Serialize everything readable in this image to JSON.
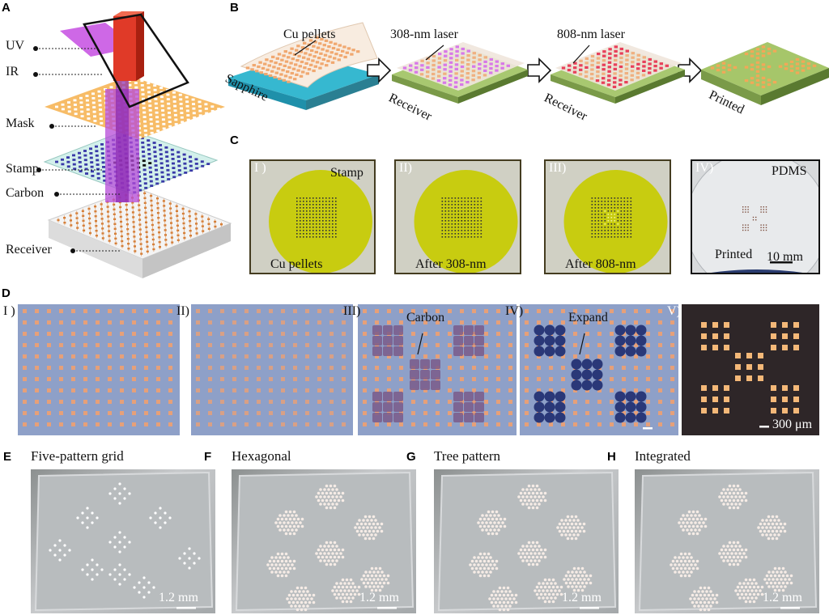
{
  "panels": {
    "A": {
      "letter": "A",
      "labels": {
        "uv": "UV",
        "ir": "IR",
        "mask": "Mask",
        "stamp": "Stamp",
        "carbon": "Carbon",
        "receiver": "Receiver"
      }
    },
    "B": {
      "letter": "B",
      "labels": {
        "cu": "Cu pellets",
        "sapphire": "Sapphire",
        "laser308": "308-nm laser",
        "laser808": "808-nm laser",
        "receiver1": "Receiver",
        "receiver2": "Receiver",
        "printed": "Printed"
      }
    },
    "C": {
      "letter": "C",
      "subs": [
        {
          "num": "I )",
          "a": "Stamp",
          "b": "Cu pellets"
        },
        {
          "num": "II)",
          "b": "After 308-nm"
        },
        {
          "num": "III)",
          "b": "After 808-nm"
        },
        {
          "num": "IV)",
          "a": "PDMS",
          "b": "Printed",
          "scale": "10 mm"
        }
      ]
    },
    "D": {
      "letter": "D",
      "subs": [
        {
          "num": "I )"
        },
        {
          "num": "II)"
        },
        {
          "num": "III)",
          "label": "Carbon"
        },
        {
          "num": "IV)",
          "label": "Expand"
        },
        {
          "num": "V)",
          "scale": "300 μm"
        }
      ]
    },
    "E": {
      "letter": "E",
      "title": "Five-pattern grid",
      "scale": "1.2 mm"
    },
    "F": {
      "letter": "F",
      "title": "Hexagonal",
      "scale": "1.2 mm"
    },
    "G": {
      "letter": "G",
      "title": "Tree pattern",
      "scale": "1.2 mm"
    },
    "H": {
      "letter": "H",
      "title": "Integrated",
      "scale": "1.2 mm"
    }
  },
  "colors": {
    "copper": "#f0b080",
    "yellow": "#c8cc10",
    "purple": "#c040e0",
    "red": "#e03020",
    "orange": "#f4b860",
    "green": "#a6c66a",
    "cyan": "#36b8d0",
    "stamp_blue": "#3a3aa8"
  }
}
